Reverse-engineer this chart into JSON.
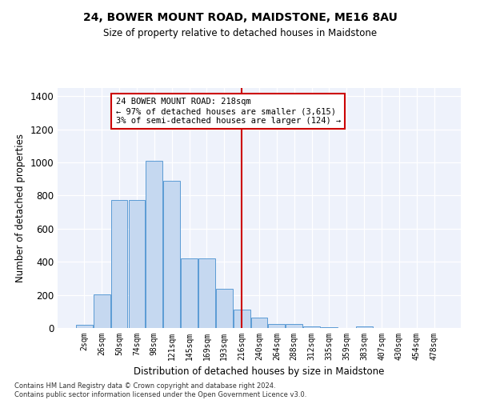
{
  "title": "24, BOWER MOUNT ROAD, MAIDSTONE, ME16 8AU",
  "subtitle": "Size of property relative to detached houses in Maidstone",
  "xlabel": "Distribution of detached houses by size in Maidstone",
  "ylabel": "Number of detached properties",
  "categories": [
    "2sqm",
    "26sqm",
    "50sqm",
    "74sqm",
    "98sqm",
    "121sqm",
    "145sqm",
    "169sqm",
    "193sqm",
    "216sqm",
    "240sqm",
    "264sqm",
    "288sqm",
    "312sqm",
    "335sqm",
    "359sqm",
    "383sqm",
    "407sqm",
    "430sqm",
    "454sqm",
    "478sqm"
  ],
  "values": [
    20,
    205,
    775,
    775,
    1010,
    890,
    420,
    420,
    235,
    110,
    65,
    25,
    22,
    10,
    5,
    0,
    12,
    0,
    0,
    0,
    0
  ],
  "bar_color": "#c5d8f0",
  "bar_edge_color": "#5b9bd5",
  "vline_index": 9,
  "vline_color": "#cc0000",
  "annotation_text": "24 BOWER MOUNT ROAD: 218sqm\n← 97% of detached houses are smaller (3,615)\n3% of semi-detached houses are larger (124) →",
  "annotation_box_color": "#ffffff",
  "annotation_box_edge": "#cc0000",
  "ylim": [
    0,
    1450
  ],
  "yticks": [
    0,
    200,
    400,
    600,
    800,
    1000,
    1200,
    1400
  ],
  "background_color": "#eef2fb",
  "grid_color": "#ffffff",
  "footer_line1": "Contains HM Land Registry data © Crown copyright and database right 2024.",
  "footer_line2": "Contains public sector information licensed under the Open Government Licence v3.0."
}
